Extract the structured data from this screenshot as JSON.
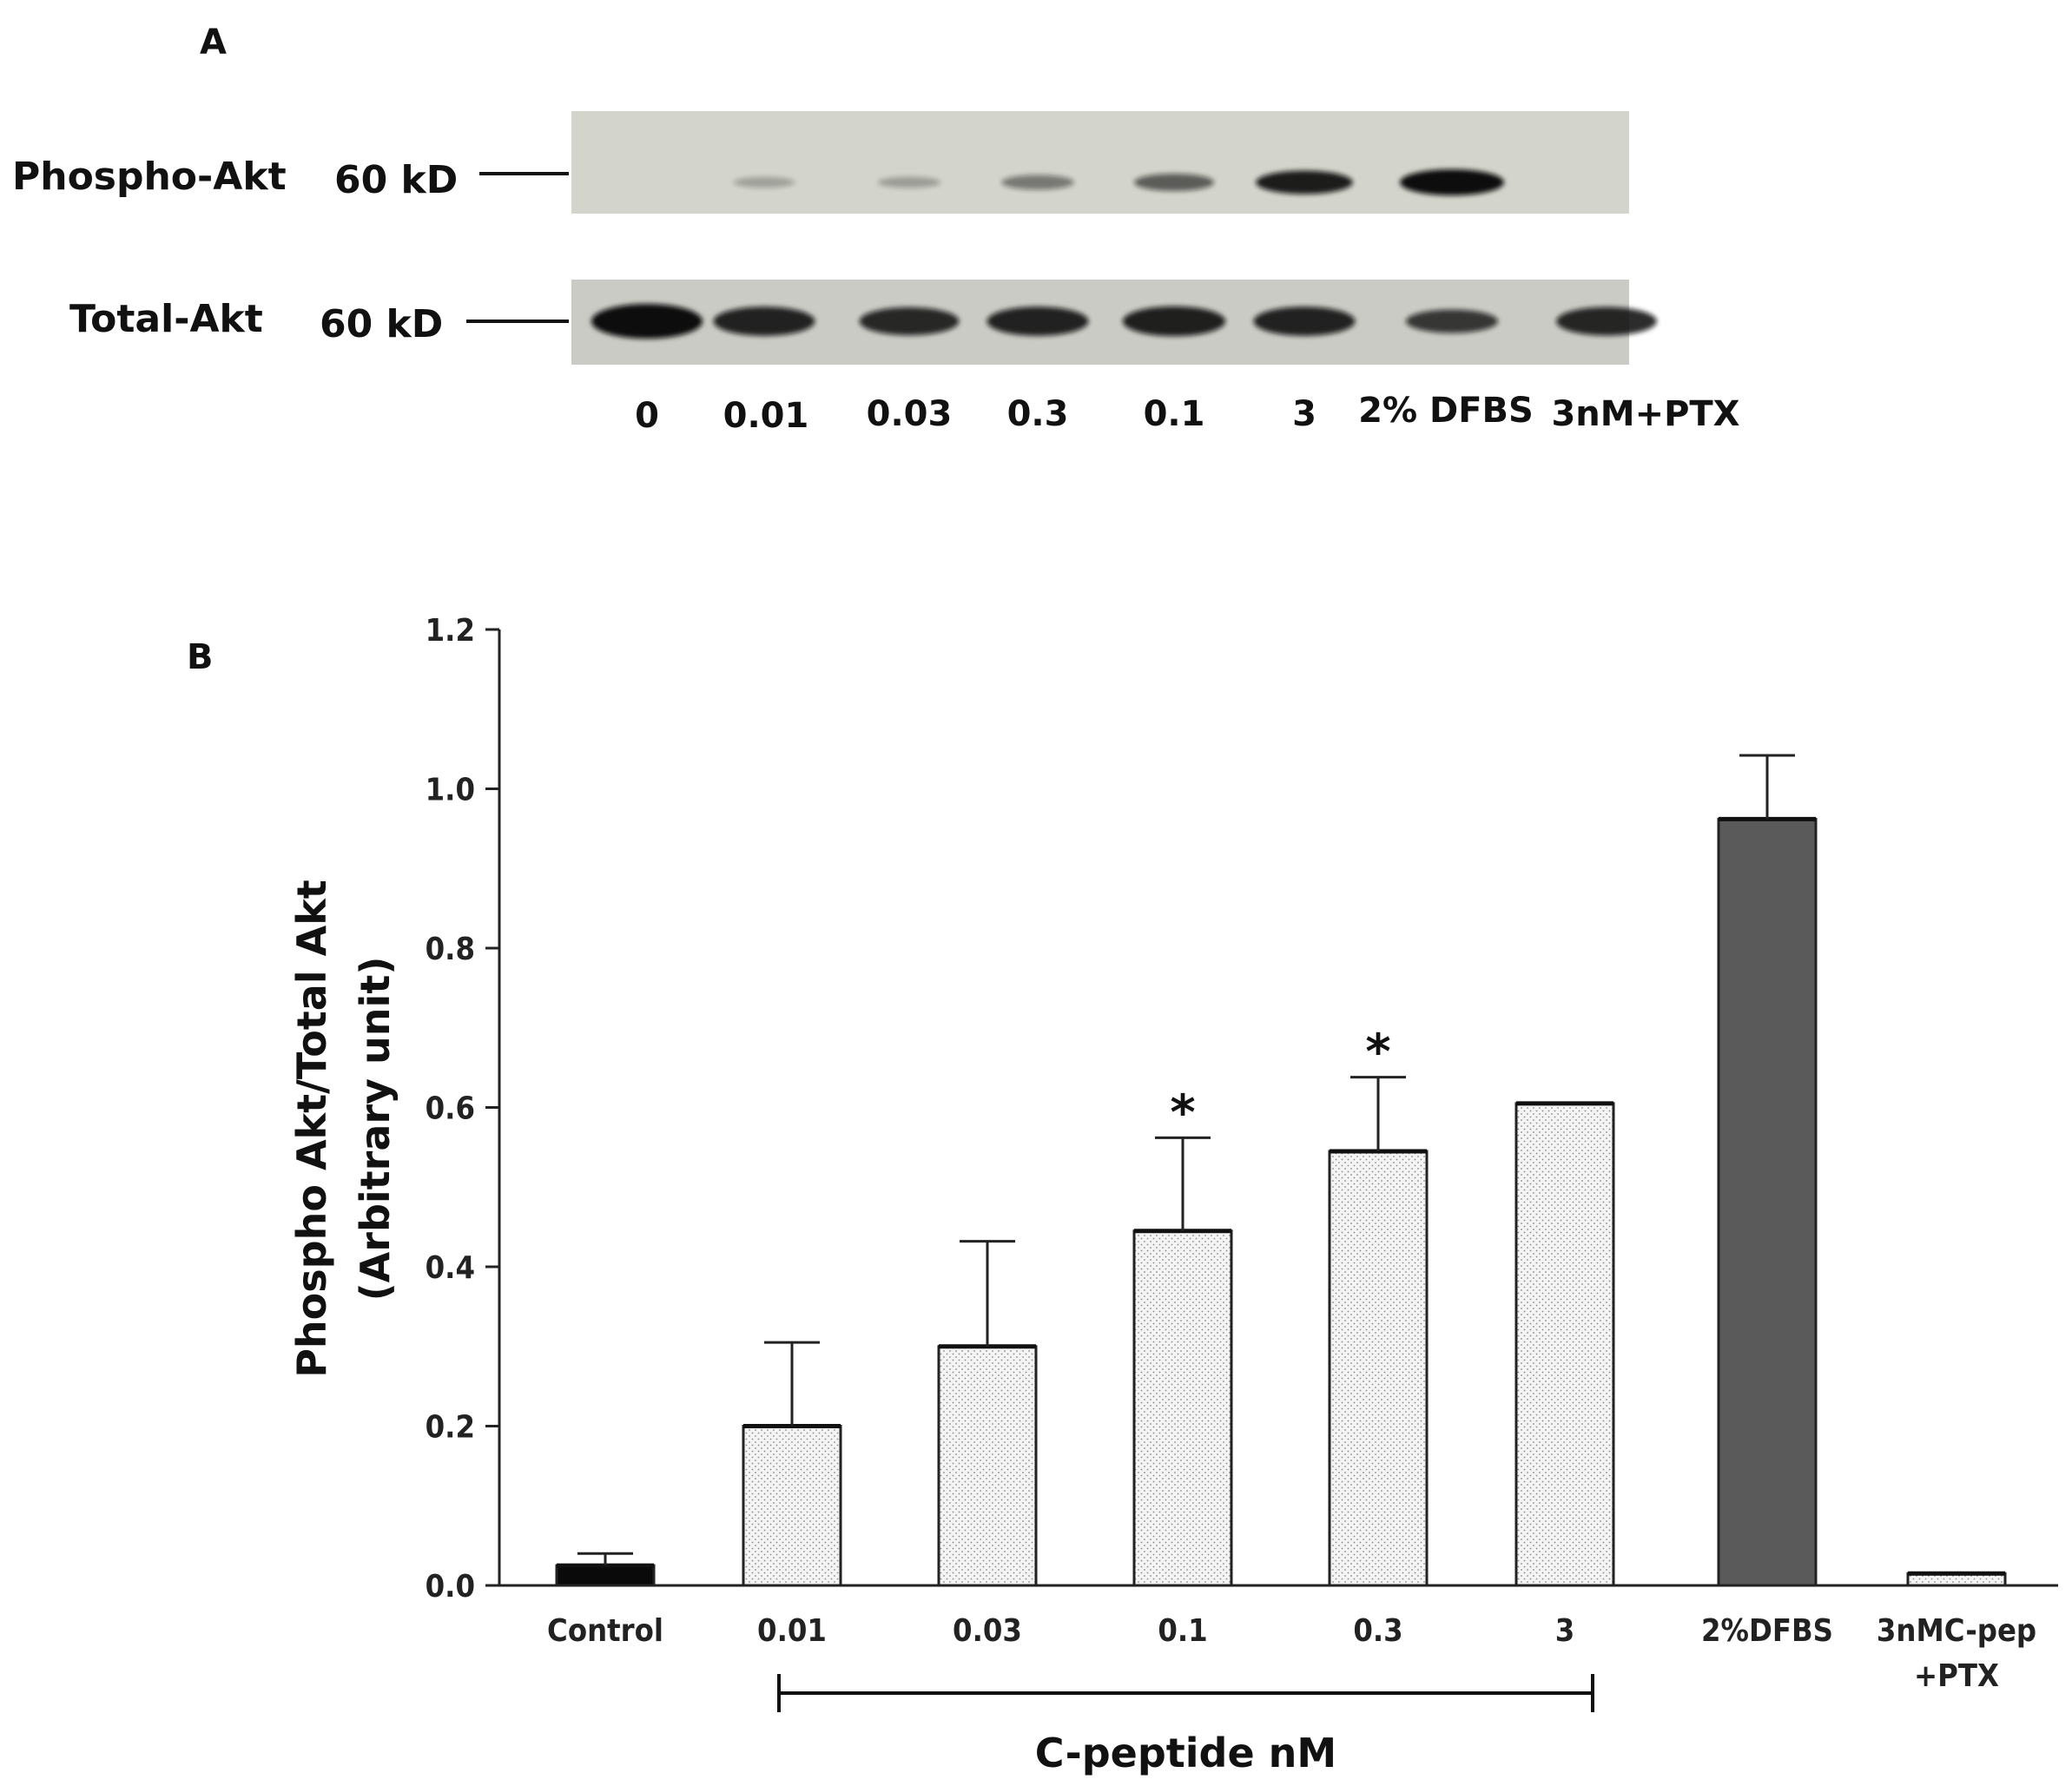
{
  "panel_a": {
    "label": "A",
    "blot_rows": [
      {
        "name": "Phospho-Akt",
        "size": "60 kD"
      },
      {
        "name": "Total-Akt",
        "size": "60 kD"
      }
    ],
    "lanes": [
      "0",
      "0.01",
      "0.03",
      "0.3",
      "0.1",
      "3",
      "2% DFBS",
      "3nM+PTX"
    ],
    "phospho_intensity": [
      0.0,
      0.12,
      0.14,
      0.35,
      0.5,
      0.85,
      1.0,
      0.0
    ],
    "total_intensity": [
      1.0,
      0.75,
      0.7,
      0.75,
      0.78,
      0.75,
      0.5,
      0.72
    ]
  },
  "panel_b": {
    "label": "B"
  },
  "chart_data": {
    "type": "bar",
    "title": "",
    "xlabel": "C-peptide nM",
    "ylabel_line1": "Phospho Akt/Total Akt",
    "ylabel_line2": "(Arbitrary unit)",
    "ylim": [
      0,
      1.2
    ],
    "yticks": [
      "0.0",
      "0.2",
      "0.4",
      "0.6",
      "0.8",
      "1.0",
      "1.2"
    ],
    "categories": [
      {
        "line1": "Control",
        "line2": ""
      },
      {
        "line1": "0.01",
        "line2": ""
      },
      {
        "line1": "0.03",
        "line2": ""
      },
      {
        "line1": "0.1",
        "line2": ""
      },
      {
        "line1": "0.3",
        "line2": ""
      },
      {
        "line1": "3",
        "line2": ""
      },
      {
        "line1": "2%DFBS",
        "line2": ""
      },
      {
        "line1": "3nMC-pep",
        "line2": "+PTX"
      }
    ],
    "values": [
      0.025,
      0.2,
      0.3,
      0.445,
      0.545,
      0.605,
      0.962,
      0.015
    ],
    "errors": [
      0.015,
      0.105,
      0.132,
      0.117,
      0.093,
      0.0,
      0.08,
      0.0
    ],
    "fills": [
      "black",
      "dotted",
      "dotted",
      "dotted",
      "dotted",
      "dotted",
      "#5a5a5a",
      "dotted"
    ],
    "annotations": [
      "",
      "",
      "",
      "*",
      "*",
      "",
      "",
      ""
    ],
    "bracket": {
      "from_index": 1,
      "to_index": 5,
      "label": "C-peptide nM"
    }
  }
}
